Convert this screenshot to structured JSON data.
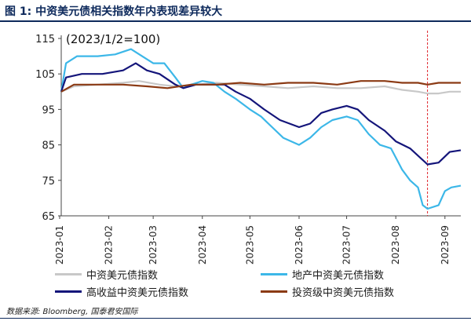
{
  "figure": {
    "title": "图 1:  中资美元债相关指数年内表现差异较大",
    "source": "数据来源:  Bloomberg, 国泰君安国际"
  },
  "chart_data": {
    "type": "line",
    "annotation": "(2023/1/2=100)",
    "ylim": [
      65,
      115
    ],
    "yticks": [
      65,
      75,
      85,
      95,
      105,
      115
    ],
    "xlim": [
      "2023-01-02",
      "2023-09-11"
    ],
    "xticks": [
      "2023-01",
      "2023-02",
      "2023-03",
      "2023-04",
      "2023-05",
      "2023-06",
      "2023-07",
      "2023-08",
      "2023-09"
    ],
    "xlabel": "",
    "ylabel": "",
    "grid": false,
    "legend_position": "bottom",
    "vline": {
      "x": "2023-08-21",
      "color": "#e0242b"
    },
    "series": [
      {
        "name": "中资美元债指数",
        "color": "#c8c8c8",
        "points": [
          [
            "2023-01-02",
            100
          ],
          [
            "2023-01-10",
            101.5
          ],
          [
            "2023-01-25",
            102
          ],
          [
            "2023-02-10",
            102.5
          ],
          [
            "2023-02-20",
            103
          ],
          [
            "2023-03-05",
            102
          ],
          [
            "2023-03-15",
            101.5
          ],
          [
            "2023-03-28",
            102
          ],
          [
            "2023-04-10",
            102.5
          ],
          [
            "2023-04-25",
            102
          ],
          [
            "2023-05-10",
            101.5
          ],
          [
            "2023-05-25",
            101
          ],
          [
            "2023-06-10",
            101.5
          ],
          [
            "2023-06-25",
            101
          ],
          [
            "2023-07-10",
            101
          ],
          [
            "2023-07-25",
            101.5
          ],
          [
            "2023-08-05",
            100.5
          ],
          [
            "2023-08-15",
            100
          ],
          [
            "2023-08-21",
            99.5
          ],
          [
            "2023-08-28",
            99.5
          ],
          [
            "2023-09-04",
            100
          ],
          [
            "2023-09-11",
            100
          ]
        ]
      },
      {
        "name": "地产中资美元债指数",
        "color": "#3cb7e8",
        "points": [
          [
            "2023-01-02",
            100
          ],
          [
            "2023-01-05",
            108
          ],
          [
            "2023-01-12",
            110
          ],
          [
            "2023-01-25",
            110
          ],
          [
            "2023-02-05",
            110.5
          ],
          [
            "2023-02-15",
            112
          ],
          [
            "2023-02-22",
            110
          ],
          [
            "2023-03-01",
            108
          ],
          [
            "2023-03-08",
            108
          ],
          [
            "2023-03-15",
            104
          ],
          [
            "2023-03-20",
            101
          ],
          [
            "2023-03-25",
            102
          ],
          [
            "2023-04-01",
            103
          ],
          [
            "2023-04-08",
            102.5
          ],
          [
            "2023-04-15",
            100
          ],
          [
            "2023-04-22",
            98
          ],
          [
            "2023-05-01",
            95
          ],
          [
            "2023-05-08",
            93
          ],
          [
            "2023-05-15",
            90
          ],
          [
            "2023-05-22",
            87
          ],
          [
            "2023-06-01",
            85
          ],
          [
            "2023-06-08",
            87
          ],
          [
            "2023-06-15",
            90
          ],
          [
            "2023-06-22",
            92
          ],
          [
            "2023-07-01",
            93
          ],
          [
            "2023-07-08",
            92
          ],
          [
            "2023-07-15",
            88
          ],
          [
            "2023-07-22",
            85
          ],
          [
            "2023-07-29",
            84
          ],
          [
            "2023-08-05",
            78
          ],
          [
            "2023-08-10",
            75
          ],
          [
            "2023-08-15",
            73
          ],
          [
            "2023-08-18",
            68
          ],
          [
            "2023-08-21",
            67
          ],
          [
            "2023-08-28",
            68
          ],
          [
            "2023-09-01",
            72
          ],
          [
            "2023-09-05",
            73
          ],
          [
            "2023-09-11",
            73.5
          ]
        ]
      },
      {
        "name": "高收益中资美元债指数",
        "color": "#14157a",
        "points": [
          [
            "2023-01-02",
            100
          ],
          [
            "2023-01-05",
            104
          ],
          [
            "2023-01-15",
            105
          ],
          [
            "2023-01-28",
            105
          ],
          [
            "2023-02-10",
            106
          ],
          [
            "2023-02-18",
            108
          ],
          [
            "2023-02-25",
            106
          ],
          [
            "2023-03-05",
            105
          ],
          [
            "2023-03-15",
            102
          ],
          [
            "2023-03-20",
            101
          ],
          [
            "2023-03-28",
            102
          ],
          [
            "2023-04-05",
            102
          ],
          [
            "2023-04-15",
            102
          ],
          [
            "2023-04-22",
            100
          ],
          [
            "2023-05-01",
            98
          ],
          [
            "2023-05-10",
            95
          ],
          [
            "2023-05-20",
            92
          ],
          [
            "2023-06-01",
            90
          ],
          [
            "2023-06-08",
            91
          ],
          [
            "2023-06-15",
            94
          ],
          [
            "2023-06-22",
            95
          ],
          [
            "2023-07-01",
            96
          ],
          [
            "2023-07-08",
            95
          ],
          [
            "2023-07-15",
            92
          ],
          [
            "2023-07-25",
            89
          ],
          [
            "2023-08-01",
            86
          ],
          [
            "2023-08-10",
            84
          ],
          [
            "2023-08-21",
            79.5
          ],
          [
            "2023-08-28",
            80
          ],
          [
            "2023-09-04",
            83
          ],
          [
            "2023-09-11",
            83.5
          ]
        ]
      },
      {
        "name": "投资级中资美元债指数",
        "color": "#8b3a14",
        "points": [
          [
            "2023-01-02",
            100
          ],
          [
            "2023-01-10",
            102
          ],
          [
            "2023-01-25",
            102
          ],
          [
            "2023-02-10",
            102
          ],
          [
            "2023-02-25",
            101.5
          ],
          [
            "2023-03-10",
            101
          ],
          [
            "2023-03-25",
            102
          ],
          [
            "2023-04-10",
            102
          ],
          [
            "2023-04-25",
            102.5
          ],
          [
            "2023-05-10",
            102
          ],
          [
            "2023-05-25",
            102.5
          ],
          [
            "2023-06-10",
            102.5
          ],
          [
            "2023-06-25",
            102
          ],
          [
            "2023-07-10",
            103
          ],
          [
            "2023-07-25",
            103
          ],
          [
            "2023-08-05",
            102.5
          ],
          [
            "2023-08-15",
            102.5
          ],
          [
            "2023-08-21",
            102
          ],
          [
            "2023-08-28",
            102.5
          ],
          [
            "2023-09-04",
            102.5
          ],
          [
            "2023-09-11",
            102.5
          ]
        ]
      }
    ]
  }
}
